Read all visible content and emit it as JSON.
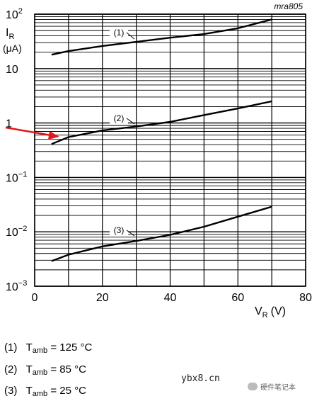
{
  "chart_data": {
    "type": "line",
    "title": "",
    "figure_id": "mra805",
    "xlabel": "V",
    "xlabel_sub": "R",
    "xlabel_unit": "(V)",
    "ylabel": "I",
    "ylabel_sub": "R",
    "ylabel_unit": "(μA)",
    "xlim": [
      0,
      80
    ],
    "xticks": [
      0,
      20,
      40,
      60,
      80
    ],
    "yscale": "log",
    "ylim": [
      0.001,
      100
    ],
    "ytick_labels": [
      {
        "base": "10",
        "exp": "2",
        "value": 100
      },
      {
        "base": "10",
        "exp": "",
        "value": 10
      },
      {
        "base": "1",
        "exp": "",
        "value": 1
      },
      {
        "base": "10",
        "exp": "−1",
        "value": 0.1
      },
      {
        "base": "10",
        "exp": "−2",
        "value": 0.01
      },
      {
        "base": "10",
        "exp": "−3",
        "value": 0.001
      }
    ],
    "grid": true,
    "series": [
      {
        "name": "(1)",
        "x": [
          5,
          10,
          20,
          30,
          40,
          50,
          60,
          70
        ],
        "y": [
          18,
          21,
          26,
          31,
          37,
          43,
          55,
          80
        ]
      },
      {
        "name": "(2)",
        "x": [
          5,
          10,
          20,
          30,
          40,
          50,
          60,
          70
        ],
        "y": [
          0.41,
          0.55,
          0.73,
          0.86,
          1.05,
          1.4,
          1.85,
          2.5
        ]
      },
      {
        "name": "(3)",
        "x": [
          5,
          10,
          20,
          30,
          40,
          50,
          60,
          70
        ],
        "y": [
          0.0029,
          0.0038,
          0.0054,
          0.0068,
          0.0088,
          0.0124,
          0.019,
          0.029
        ]
      }
    ],
    "annotation_arrow": {
      "color": "#e0191b",
      "points_to_series": "(2)"
    }
  },
  "legend": [
    {
      "num": "(1)",
      "t": "T",
      "sub": "amb",
      "eq": "= 125 °C"
    },
    {
      "num": "(2)",
      "t": "T",
      "sub": "amb",
      "eq": "= 85 °C"
    },
    {
      "num": "(3)",
      "t": "T",
      "sub": "amb",
      "eq": "= 25 °C"
    }
  ],
  "watermark": {
    "site": "ybx8.cn",
    "brand": "硬件笔记本"
  }
}
